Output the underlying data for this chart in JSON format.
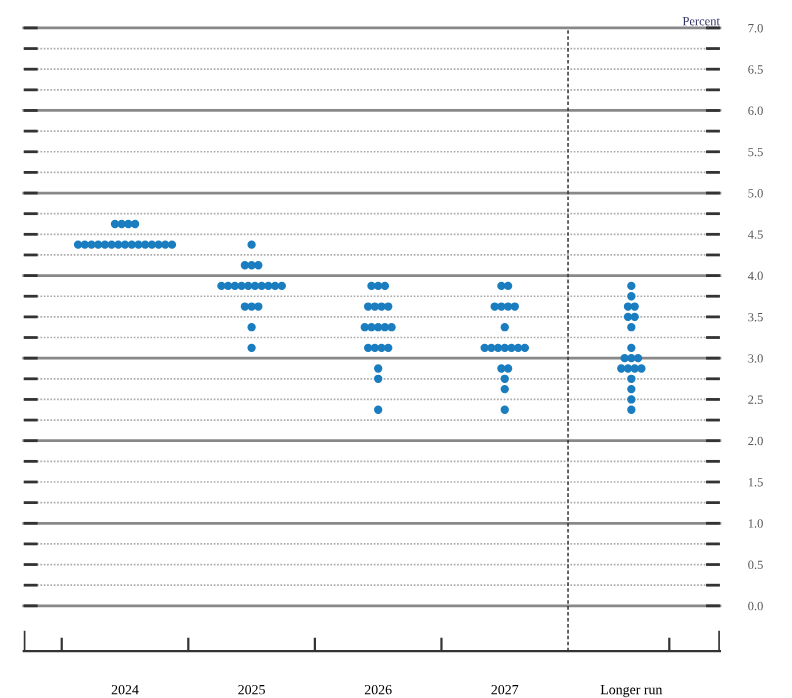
{
  "chart_data": {
    "type": "scatter",
    "ylabel": "Percent",
    "categories": [
      "2024",
      "2025",
      "2026",
      "2027",
      "Longer run"
    ],
    "series": [
      {
        "color": "#1a7dc0",
        "values": [
          4.625,
          4.375,
          3.875,
          3.875,
          3.875
        ]
      },
      {
        "color": "#1a7dc0",
        "values": [
          4.625,
          4.125,
          3.875,
          3.875,
          3.75
        ]
      },
      {
        "color": "#1a7dc0",
        "values": [
          4.625,
          4.125,
          3.875,
          3.625,
          3.625
        ]
      },
      {
        "color": "#1a7dc0",
        "values": [
          4.625,
          4.125,
          3.625,
          3.625,
          3.625
        ]
      },
      {
        "color": "#1a7dc0",
        "values": [
          4.375,
          3.875,
          3.625,
          3.625,
          3.5
        ]
      },
      {
        "color": "#1a7dc0",
        "values": [
          4.375,
          3.875,
          3.625,
          3.625,
          3.5
        ]
      },
      {
        "color": "#1a7dc0",
        "values": [
          4.375,
          3.875,
          3.625,
          3.375,
          3.375
        ]
      },
      {
        "color": "#1a7dc0",
        "values": [
          4.375,
          3.875,
          3.375,
          3.125,
          3.125
        ]
      },
      {
        "color": "#1a7dc0",
        "values": [
          4.375,
          3.875,
          3.375,
          3.125,
          3.0
        ]
      },
      {
        "color": "#1a7dc0",
        "values": [
          4.375,
          3.875,
          3.375,
          3.125,
          3.0
        ]
      },
      {
        "color": "#1a7dc0",
        "values": [
          4.375,
          3.875,
          3.375,
          3.125,
          3.0
        ]
      },
      {
        "color": "#1a7dc0",
        "values": [
          4.375,
          3.875,
          3.375,
          3.125,
          2.875
        ]
      },
      {
        "color": "#1a7dc0",
        "values": [
          4.375,
          3.875,
          3.125,
          3.125,
          2.875
        ]
      },
      {
        "color": "#1a7dc0",
        "values": [
          4.375,
          3.875,
          3.125,
          3.125,
          2.875
        ]
      },
      {
        "color": "#1a7dc0",
        "values": [
          4.375,
          3.625,
          3.125,
          2.875,
          2.875
        ]
      },
      {
        "color": "#1a7dc0",
        "values": [
          4.375,
          3.625,
          3.125,
          2.875,
          2.75
        ]
      },
      {
        "color": "#1a7dc0",
        "values": [
          4.375,
          3.625,
          2.875,
          2.75,
          2.625
        ]
      },
      {
        "color": "#1a7dc0",
        "values": [
          4.375,
          3.375,
          2.75,
          2.625,
          2.5
        ]
      },
      {
        "color": "#1a7dc0",
        "values": [
          4.375,
          3.125,
          2.375,
          2.375,
          2.375
        ]
      }
    ],
    "ylim": [
      -0.55,
      7
    ],
    "yticks": [
      {
        "value": 0,
        "label": "0.0"
      },
      {
        "value": 0.25,
        "label": null
      },
      {
        "value": 0.5,
        "label": "0.5"
      },
      {
        "value": 0.75,
        "label": null
      },
      {
        "value": 1,
        "label": "1.0"
      },
      {
        "value": 1.25,
        "label": null
      },
      {
        "value": 1.5,
        "label": "1.5"
      },
      {
        "value": 1.75,
        "label": null
      },
      {
        "value": 2,
        "label": "2.0"
      },
      {
        "value": 2.25,
        "label": null
      },
      {
        "value": 2.5,
        "label": "2.5"
      },
      {
        "value": 2.75,
        "label": null
      },
      {
        "value": 3,
        "label": "3.0"
      },
      {
        "value": 3.25,
        "label": null
      },
      {
        "value": 3.5,
        "label": "3.5"
      },
      {
        "value": 3.75,
        "label": null
      },
      {
        "value": 4,
        "label": "4.0"
      },
      {
        "value": 4.25,
        "label": null
      },
      {
        "value": 4.5,
        "label": "4.5"
      },
      {
        "value": 4.75,
        "label": null
      },
      {
        "value": 5,
        "label": "5.0"
      },
      {
        "value": 5.25,
        "label": null
      },
      {
        "value": 5.5,
        "label": "5.5"
      },
      {
        "value": 5.75,
        "label": null
      },
      {
        "value": 6,
        "label": "6.0"
      },
      {
        "value": 6.25,
        "label": null
      },
      {
        "value": 6.5,
        "label": "6.5"
      },
      {
        "value": 6.75,
        "label": null
      },
      {
        "value": 7,
        "label": "7.0"
      }
    ],
    "grid": "y",
    "marker": "circle"
  }
}
